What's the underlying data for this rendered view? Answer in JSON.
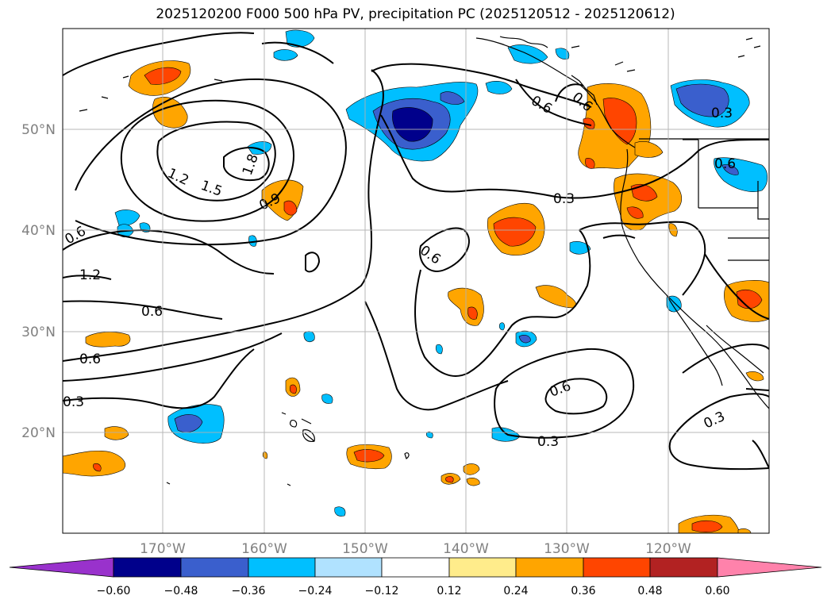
{
  "title": "2025120200 F000 500 hPa PV, precipitation PC (2025120512 - 2025120612)",
  "axes": {
    "lat_labels": [
      "50°N",
      "40°N",
      "30°N",
      "20°N"
    ],
    "lon_labels": [
      "170°W",
      "160°W",
      "150°W",
      "140°W",
      "130°W",
      "120°W"
    ],
    "label_color": "#808080"
  },
  "contour_labels": [
    "1.2",
    "1.5",
    "1.8",
    "0.9",
    "0.6",
    "1.2",
    "0.6",
    "0.6",
    "0.3",
    "0.6",
    "0.3",
    "0.6",
    "0.6",
    "0.6",
    "0.3",
    "0.3",
    "0.3",
    "0.6"
  ],
  "colorbar": {
    "ticks": [
      "−0.60",
      "−0.48",
      "−0.36",
      "−0.24",
      "−0.12",
      "0.12",
      "0.24",
      "0.36",
      "0.48",
      "0.60"
    ],
    "colors": [
      "#9932cc",
      "#00008b",
      "#3a5fcd",
      "#00bfff",
      "#b0e2ff",
      "#ffffff",
      "#ffec8b",
      "#ffa500",
      "#ff4500",
      "#b22222",
      "#ff82ab"
    ]
  }
}
